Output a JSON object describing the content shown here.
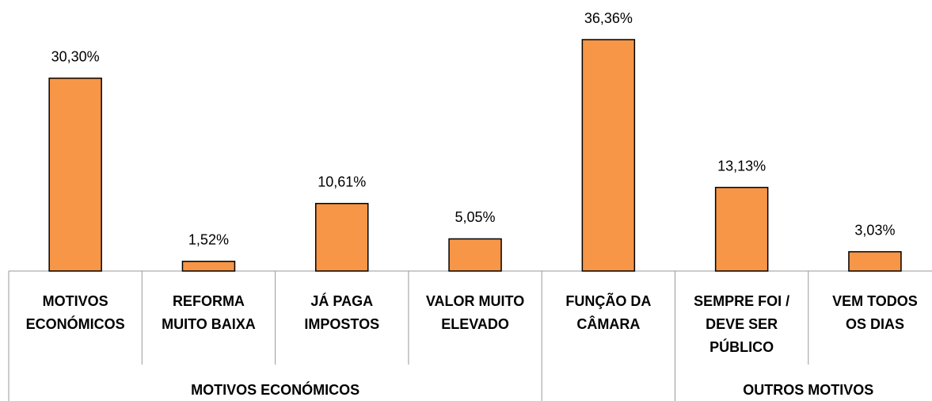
{
  "chart_data": {
    "type": "bar",
    "categories": [
      [
        "MOTIVOS",
        "ECONÓMICOS"
      ],
      [
        "REFORMA",
        "MUITO BAIXA"
      ],
      [
        "JÁ PAGA",
        "IMPOSTOS"
      ],
      [
        "VALOR MUITO",
        "ELEVADO"
      ],
      [
        "FUNÇÃO DA",
        "CÂMARA"
      ],
      [
        "SEMPRE FOI /",
        "DEVE SER",
        "PÚBLICO"
      ],
      [
        "VEM TODOS",
        "OS DIAS"
      ]
    ],
    "values": [
      30.3,
      1.52,
      10.61,
      5.05,
      36.36,
      13.13,
      3.03
    ],
    "value_labels": [
      "30,30%",
      "1,52%",
      "10,61%",
      "5,05%",
      "36,36%",
      "13,13%",
      "3,03%"
    ],
    "groups": [
      {
        "name": "MOTIVOS ECONÓMICOS",
        "count": 4
      },
      {
        "name": null,
        "count": 1
      },
      {
        "name": "OUTROS MOTIVOS",
        "count": 2
      }
    ],
    "color": "#f79646"
  }
}
